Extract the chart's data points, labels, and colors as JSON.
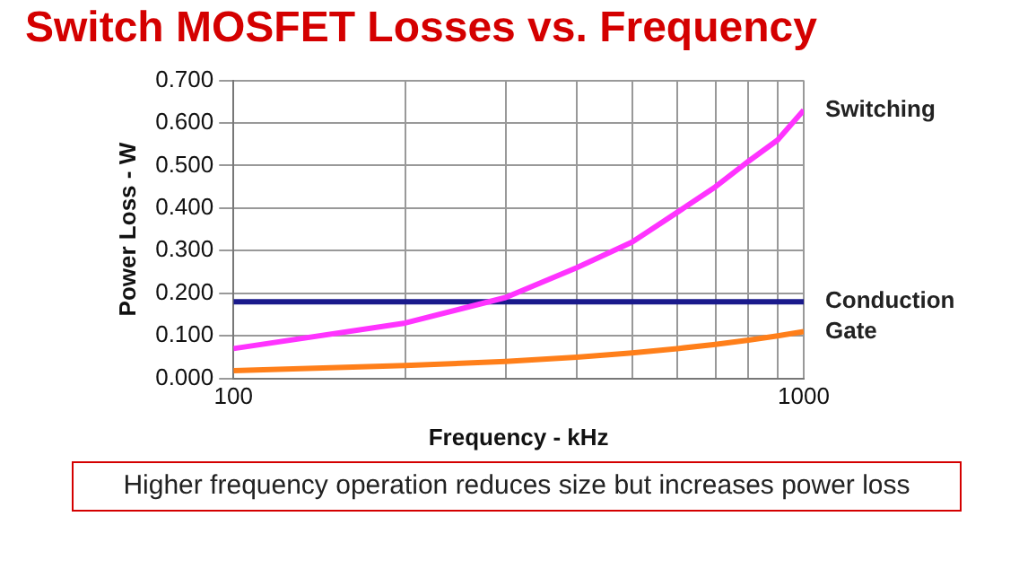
{
  "chart_data": {
    "type": "line",
    "title": "Switch MOSFET Losses vs. Frequency",
    "xlabel": "Frequency - kHz",
    "ylabel": "Power Loss - W",
    "annotations": [
      "Higher frequency operation reduces size but increases power loss"
    ],
    "x": [
      100,
      200,
      300,
      400,
      500,
      600,
      700,
      800,
      900,
      1000
    ],
    "series": [
      {
        "name": "Switching",
        "color": "#ff33ff",
        "values": [
          0.07,
          0.13,
          0.19,
          0.26,
          0.32,
          0.39,
          0.45,
          0.51,
          0.56,
          0.63
        ]
      },
      {
        "name": "Conduction",
        "color": "#1a1a8c",
        "values": [
          0.18,
          0.18,
          0.18,
          0.18,
          0.18,
          0.18,
          0.18,
          0.18,
          0.18,
          0.18
        ]
      },
      {
        "name": "Gate",
        "color": "#ff7f1a",
        "values": [
          0.018,
          0.03,
          0.04,
          0.05,
          0.06,
          0.07,
          0.08,
          0.09,
          0.1,
          0.11
        ]
      }
    ],
    "log": "x",
    "xlim": [
      100,
      1000
    ],
    "xticks": [
      100,
      {
        "value": 200,
        "label": null
      },
      {
        "value": 300,
        "label": null
      },
      {
        "value": 400,
        "label": null
      },
      {
        "value": 500,
        "label": null
      },
      {
        "value": 600,
        "label": null
      },
      {
        "value": 700,
        "label": null
      },
      {
        "value": 800,
        "label": null
      },
      {
        "value": 900,
        "label": null
      },
      1000
    ],
    "ylim": [
      0,
      0.7
    ],
    "yticks": [
      {
        "value": 0,
        "label": "0.000"
      },
      {
        "value": 0.1,
        "label": "0.100"
      },
      {
        "value": 0.2,
        "label": "0.200"
      },
      {
        "value": 0.3,
        "label": "0.300"
      },
      {
        "value": 0.4,
        "label": "0.400"
      },
      {
        "value": 0.5,
        "label": "0.500"
      },
      {
        "value": 0.6,
        "label": "0.600"
      },
      {
        "value": 0.7,
        "label": "0.700"
      }
    ],
    "grid": true,
    "legend": false,
    "marker": "none",
    "line_style": "solid"
  }
}
